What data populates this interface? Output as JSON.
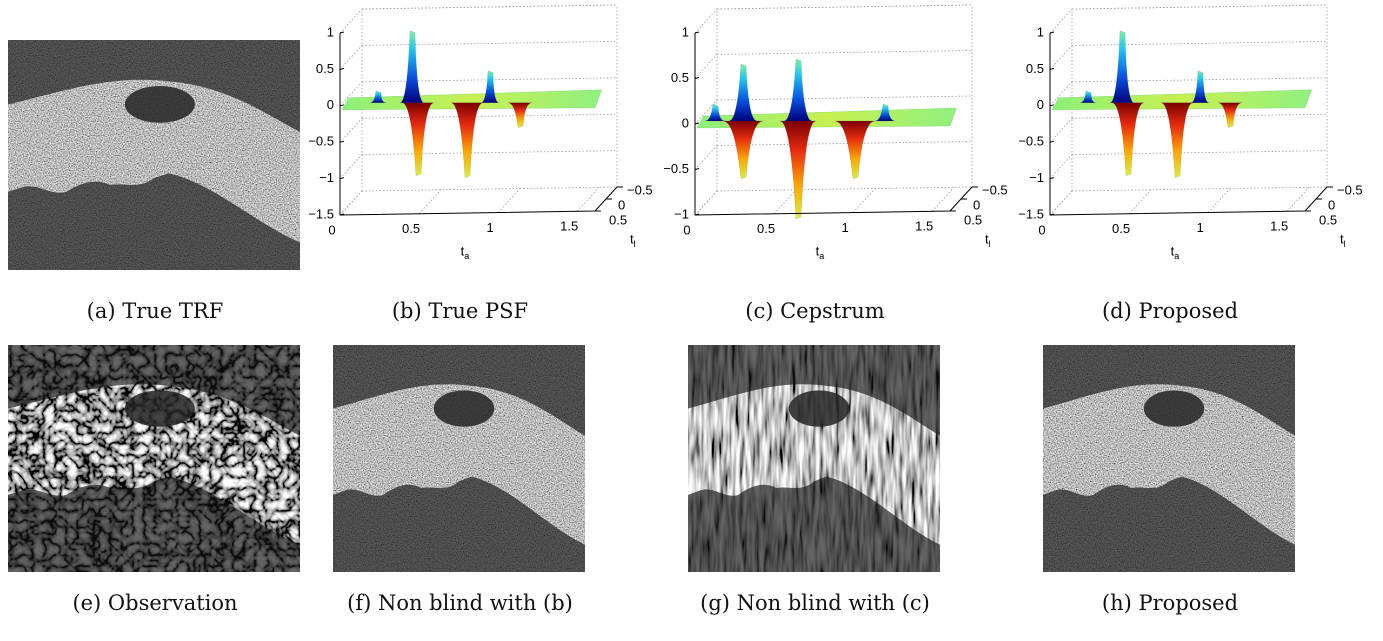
{
  "panels": [
    {
      "caption": "(a) True TRF"
    },
    {
      "caption": "(b) True PSF",
      "z_ticks": [
        "1",
        "0.5",
        "0",
        "−0.5",
        "−1",
        "−1.5"
      ],
      "x_ticks": [
        "0",
        "0.5",
        "1",
        "1.5"
      ],
      "y_ticks": [
        "−0.5",
        "0",
        "0.5"
      ],
      "x_label": "t",
      "x_label_sub": "a",
      "y_label": "t",
      "y_label_sub": "l"
    },
    {
      "caption": "(c) Cepstrum",
      "z_ticks": [
        "1",
        "0.5",
        "0",
        "−0.5",
        "−1"
      ],
      "x_ticks": [
        "0",
        "0.5",
        "1",
        "1.5"
      ],
      "y_ticks": [
        "−0.5",
        "0",
        "0.5"
      ],
      "x_label": "t",
      "x_label_sub": "a",
      "y_label": "t",
      "y_label_sub": "l"
    },
    {
      "caption": "(d) Proposed",
      "z_ticks": [
        "1",
        "0.5",
        "0",
        "−0.5",
        "−1",
        "−1.5"
      ],
      "x_ticks": [
        "0",
        "0.5",
        "1",
        "1.5"
      ],
      "y_ticks": [
        "−0.5",
        "0",
        "0.5"
      ],
      "x_label": "t",
      "x_label_sub": "a",
      "y_label": "t",
      "y_label_sub": "l"
    },
    {
      "caption": "(e) Observation"
    },
    {
      "caption": "(f) Non blind with (b)"
    },
    {
      "caption": "(g) Non blind with (c)"
    },
    {
      "caption": "(h) Proposed"
    }
  ]
}
